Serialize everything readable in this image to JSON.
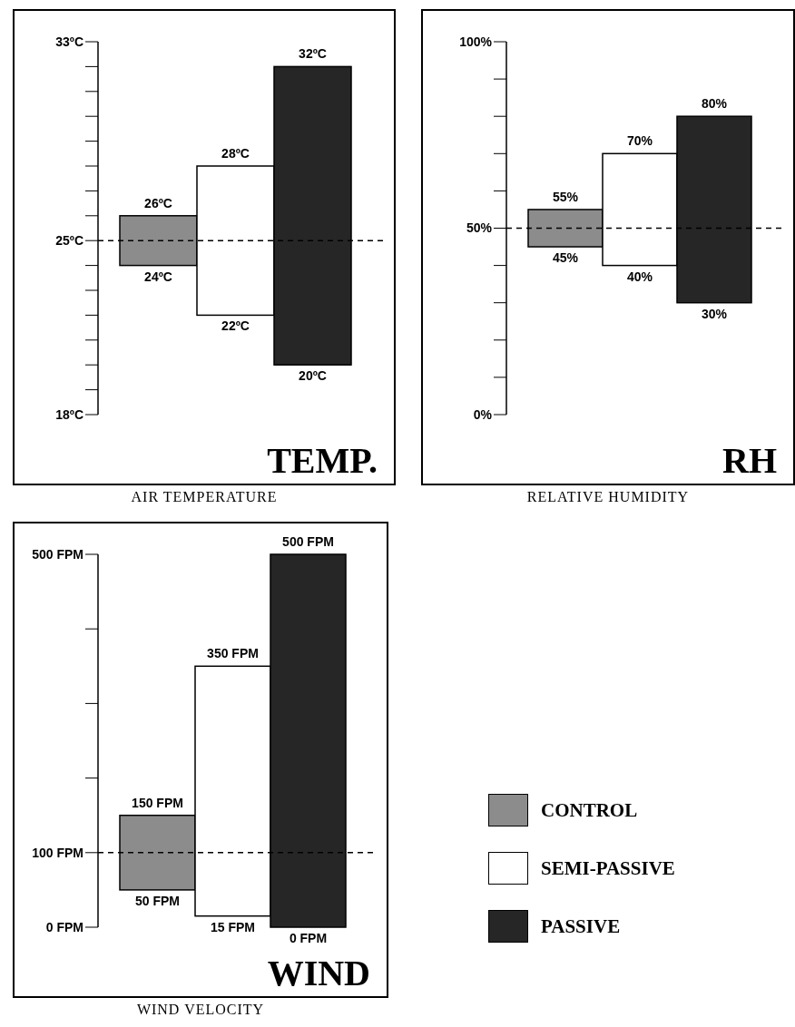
{
  "chart_data": [
    {
      "type": "bar",
      "title": "TEMP.",
      "xlabel": "AIR TEMPERATURE",
      "categories": [
        null
      ],
      "series": [
        {
          "color": "#8c8c8c",
          "values": [
            2
          ],
          "base": [
            24
          ]
        },
        {
          "color": "#ffffff",
          "values": [
            6
          ],
          "base": [
            22
          ]
        },
        {
          "color": "#262626",
          "values": [
            12
          ],
          "base": [
            20
          ]
        }
      ],
      "ylim": [
        18,
        33
      ],
      "yticks": [
        {
          "value": 18,
          "label": "18ºC"
        },
        {
          "value": 19,
          "label": null
        },
        {
          "value": 20,
          "label": null
        },
        {
          "value": 21,
          "label": null
        },
        {
          "value": 22,
          "label": null
        },
        {
          "value": 23,
          "label": null
        },
        {
          "value": 24,
          "label": null
        },
        {
          "value": 25,
          "label": "25ºC"
        },
        {
          "value": 26,
          "label": null
        },
        {
          "value": 27,
          "label": null
        },
        {
          "value": 28,
          "label": null
        },
        {
          "value": 29,
          "label": null
        },
        {
          "value": 30,
          "label": null
        },
        {
          "value": 31,
          "label": null
        },
        {
          "value": 32,
          "label": null
        },
        {
          "value": 33,
          "label": "33ºC"
        }
      ],
      "ref_lines": [
        {
          "axis": "y",
          "value": 25,
          "line_style": "dashed"
        }
      ],
      "annotations": [
        {
          "text": "26ºC",
          "y": 26
        },
        {
          "text": "24ºC",
          "y": 24
        },
        {
          "text": "28ºC",
          "y": 28
        },
        {
          "text": "22ºC",
          "y": 22
        },
        {
          "text": "32ºC",
          "y": 32
        },
        {
          "text": "20ºC",
          "y": 20
        }
      ],
      "grid": false,
      "legend": false
    },
    {
      "type": "bar",
      "title": "RH",
      "xlabel": "RELATIVE HUMIDITY",
      "categories": [
        null
      ],
      "series": [
        {
          "color": "#8c8c8c",
          "values": [
            10
          ],
          "base": [
            45
          ]
        },
        {
          "color": "#ffffff",
          "values": [
            30
          ],
          "base": [
            40
          ]
        },
        {
          "color": "#262626",
          "values": [
            50
          ],
          "base": [
            30
          ]
        }
      ],
      "ylim": [
        0,
        100
      ],
      "yticks": [
        {
          "value": 0,
          "label": "0%"
        },
        {
          "value": 10,
          "label": null
        },
        {
          "value": 20,
          "label": null
        },
        {
          "value": 30,
          "label": null
        },
        {
          "value": 40,
          "label": null
        },
        {
          "value": 50,
          "label": "50%"
        },
        {
          "value": 60,
          "label": null
        },
        {
          "value": 70,
          "label": null
        },
        {
          "value": 80,
          "label": null
        },
        {
          "value": 90,
          "label": null
        },
        {
          "value": 100,
          "label": "100%"
        }
      ],
      "ref_lines": [
        {
          "axis": "y",
          "value": 50,
          "line_style": "dashed"
        }
      ],
      "annotations": [
        {
          "text": "55%",
          "y": 55
        },
        {
          "text": "45%",
          "y": 45
        },
        {
          "text": "70%",
          "y": 70
        },
        {
          "text": "40%",
          "y": 40
        },
        {
          "text": "80%",
          "y": 80
        },
        {
          "text": "30%",
          "y": 30
        }
      ],
      "grid": false,
      "legend": false
    },
    {
      "type": "bar",
      "title": "WIND",
      "xlabel": "WIND VELOCITY",
      "categories": [
        null
      ],
      "series": [
        {
          "name": "CONTROL",
          "color": "#8c8c8c",
          "values": [
            100
          ],
          "base": [
            50
          ]
        },
        {
          "name": "SEMI-PASSIVE",
          "color": "#ffffff",
          "values": [
            335
          ],
          "base": [
            15
          ]
        },
        {
          "name": "PASSIVE",
          "color": "#262626",
          "values": [
            500
          ],
          "base": [
            0
          ]
        }
      ],
      "ylim": [
        0,
        500
      ],
      "yticks": [
        {
          "value": 0,
          "label": "0 FPM"
        },
        {
          "value": 100,
          "label": "100 FPM"
        },
        {
          "value": 200,
          "label": null
        },
        {
          "value": 300,
          "label": null
        },
        {
          "value": 400,
          "label": null
        },
        {
          "value": 500,
          "label": "500 FPM"
        }
      ],
      "ref_lines": [
        {
          "axis": "y",
          "value": 100,
          "line_style": "dashed"
        }
      ],
      "annotations": [
        {
          "text": "150 FPM",
          "y": 150
        },
        {
          "text": "50 FPM",
          "y": 50
        },
        {
          "text": "350 FPM",
          "y": 350
        },
        {
          "text": "15 FPM",
          "y": 15
        },
        {
          "text": "500 FPM",
          "y": 500
        },
        {
          "text": "0 FPM",
          "y": 0
        }
      ],
      "grid": false,
      "legend": "right"
    }
  ]
}
